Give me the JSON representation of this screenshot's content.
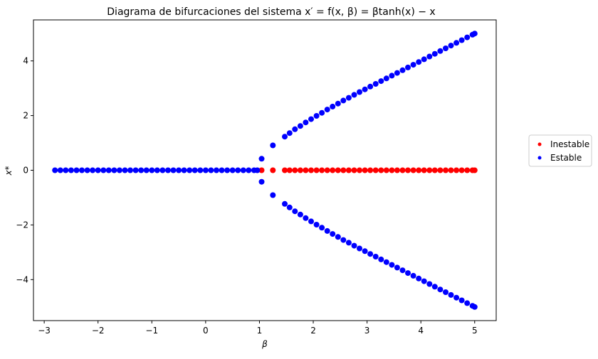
{
  "chart_data": {
    "type": "scatter",
    "title": "Diagrama de bifurcaciones del sistema x′ = f(x, β) = βtanh(x) − x",
    "xlabel": "β",
    "ylabel": "x*",
    "xlim": [
      -3.2,
      5.4
    ],
    "ylim": [
      -5.5,
      5.5
    ],
    "xticks": [
      -3,
      -2,
      -1,
      0,
      1,
      2,
      3,
      4,
      5
    ],
    "yticks": [
      -4,
      -2,
      0,
      2,
      4
    ],
    "xtick_labels": [
      "−3",
      "−2",
      "−1",
      "0",
      "1",
      "2",
      "3",
      "4",
      "5"
    ],
    "ytick_labels": [
      "−4",
      "−2",
      "0",
      "2",
      "4"
    ],
    "grid": false,
    "legend": {
      "placement": "right-outside",
      "entries": [
        "Inestable",
        "Estable"
      ]
    },
    "series": [
      {
        "name": "Inestable",
        "color": "#ff0000",
        "x": [
          1.04,
          1.25,
          1.47,
          1.56,
          1.66,
          1.76,
          1.86,
          1.96,
          2.06,
          2.16,
          2.26,
          2.36,
          2.46,
          2.56,
          2.66,
          2.76,
          2.86,
          2.96,
          3.06,
          3.16,
          3.26,
          3.36,
          3.46,
          3.56,
          3.66,
          3.76,
          3.86,
          3.96,
          4.06,
          4.16,
          4.26,
          4.36,
          4.46,
          4.56,
          4.66,
          4.76,
          4.86,
          4.96,
          5.0
        ],
        "y": [
          0,
          0,
          0,
          0,
          0,
          0,
          0,
          0,
          0,
          0,
          0,
          0,
          0,
          0,
          0,
          0,
          0,
          0,
          0,
          0,
          0,
          0,
          0,
          0,
          0,
          0,
          0,
          0,
          0,
          0,
          0,
          0,
          0,
          0,
          0,
          0,
          0,
          0,
          0
        ]
      },
      {
        "name": "Estable",
        "color": "#0000ff",
        "x": [
          -2.8,
          -2.7,
          -2.6,
          -2.5,
          -2.4,
          -2.3,
          -2.2,
          -2.1,
          -2.0,
          -1.9,
          -1.8,
          -1.7,
          -1.6,
          -1.5,
          -1.4,
          -1.3,
          -1.2,
          -1.1,
          -1.0,
          -0.9,
          -0.8,
          -0.7,
          -0.6,
          -0.5,
          -0.4,
          -0.3,
          -0.2,
          -0.1,
          0.0,
          0.1,
          0.2,
          0.3,
          0.4,
          0.5,
          0.6,
          0.7,
          0.8,
          0.9,
          0.96,
          1.04,
          1.04,
          1.25,
          1.25,
          1.47,
          1.47,
          1.56,
          1.56,
          1.66,
          1.66,
          1.76,
          1.76,
          1.86,
          1.86,
          1.96,
          1.96,
          2.06,
          2.06,
          2.16,
          2.16,
          2.26,
          2.26,
          2.36,
          2.36,
          2.46,
          2.46,
          2.56,
          2.56,
          2.66,
          2.66,
          2.76,
          2.76,
          2.86,
          2.86,
          2.96,
          2.96,
          3.06,
          3.06,
          3.16,
          3.16,
          3.26,
          3.26,
          3.36,
          3.36,
          3.46,
          3.46,
          3.56,
          3.56,
          3.66,
          3.66,
          3.76,
          3.76,
          3.86,
          3.86,
          3.96,
          3.96,
          4.06,
          4.06,
          4.16,
          4.16,
          4.26,
          4.26,
          4.36,
          4.36,
          4.46,
          4.46,
          4.56,
          4.56,
          4.66,
          4.66,
          4.76,
          4.76,
          4.86,
          4.86,
          4.96,
          4.96,
          5.0,
          5.0
        ],
        "y": [
          0,
          0,
          0,
          0,
          0,
          0,
          0,
          0,
          0,
          0,
          0,
          0,
          0,
          0,
          0,
          0,
          0,
          0,
          0,
          0,
          0,
          0,
          0,
          0,
          0,
          0,
          0,
          0,
          0,
          0,
          0,
          0,
          0,
          0,
          0,
          0,
          0,
          0,
          0,
          0.42,
          -0.42,
          0.91,
          -0.91,
          1.23,
          -1.23,
          1.36,
          -1.36,
          1.5,
          -1.5,
          1.62,
          -1.62,
          1.75,
          -1.75,
          1.87,
          -1.87,
          1.99,
          -1.99,
          2.1,
          -2.1,
          2.22,
          -2.22,
          2.33,
          -2.33,
          2.44,
          -2.44,
          2.55,
          -2.55,
          2.65,
          -2.65,
          2.76,
          -2.76,
          2.86,
          -2.86,
          2.96,
          -2.96,
          3.06,
          -3.06,
          3.16,
          -3.16,
          3.26,
          -3.26,
          3.36,
          -3.36,
          3.46,
          -3.46,
          3.56,
          -3.56,
          3.66,
          -3.66,
          3.76,
          -3.76,
          3.86,
          -3.86,
          3.96,
          -3.96,
          4.06,
          -4.06,
          4.16,
          -4.16,
          4.26,
          -4.26,
          4.36,
          -4.36,
          4.46,
          -4.46,
          4.56,
          -4.56,
          4.66,
          -4.66,
          4.76,
          -4.76,
          4.86,
          -4.86,
          4.96,
          -4.96,
          5.0,
          -5.0
        ]
      }
    ]
  }
}
